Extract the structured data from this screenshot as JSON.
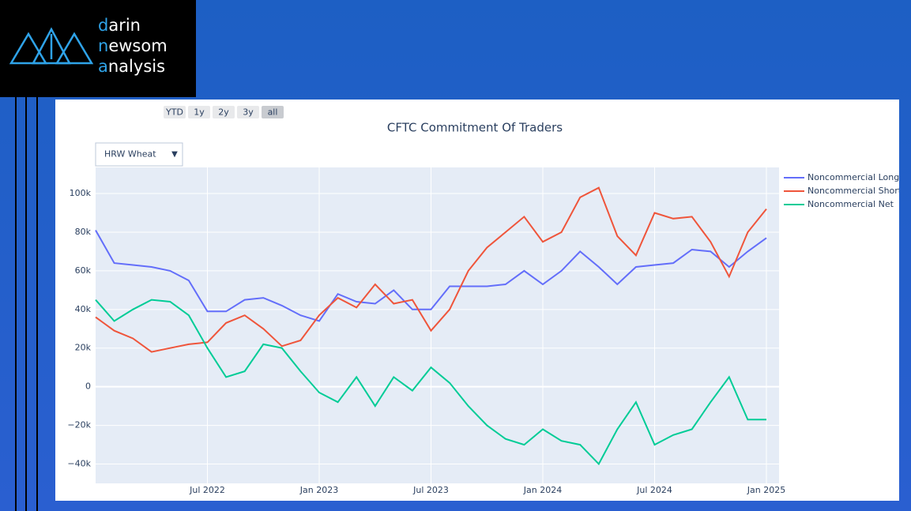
{
  "logo": {
    "lines": [
      "darin",
      "newsom",
      "analysis"
    ]
  },
  "range_buttons": [
    "YTD",
    "1y",
    "2y",
    "3y",
    "all"
  ],
  "dropdown": {
    "selected": "HRW Wheat"
  },
  "chart_data": {
    "type": "line",
    "title": "CFTC Commitment Of Traders",
    "x": [
      "2022-01",
      "2022-02",
      "2022-03",
      "2022-04",
      "2022-05",
      "2022-06",
      "2022-07",
      "2022-08",
      "2022-09",
      "2022-10",
      "2022-11",
      "2022-12",
      "2023-01",
      "2023-02",
      "2023-03",
      "2023-04",
      "2023-05",
      "2023-06",
      "2023-07",
      "2023-08",
      "2023-09",
      "2023-10",
      "2023-11",
      "2023-12",
      "2024-01",
      "2024-02",
      "2024-03",
      "2024-04",
      "2024-05",
      "2024-06",
      "2024-07",
      "2024-08",
      "2024-09",
      "2024-10",
      "2024-11",
      "2024-12",
      "2025-01"
    ],
    "series": [
      {
        "name": "Noncommercial Long",
        "color": "#636efa",
        "values": [
          81000,
          64000,
          63000,
          62000,
          60000,
          55000,
          39000,
          39000,
          45000,
          46000,
          42000,
          37000,
          34000,
          48000,
          44000,
          43000,
          50000,
          40000,
          40000,
          52000,
          52000,
          52000,
          53000,
          60000,
          53000,
          60000,
          70000,
          62000,
          53000,
          62000,
          63000,
          64000,
          71000,
          70000,
          62000,
          70000,
          77000
        ]
      },
      {
        "name": "Noncommercial Short",
        "color": "#ef553b",
        "values": [
          36000,
          29000,
          25000,
          18000,
          20000,
          22000,
          23000,
          33000,
          37000,
          30000,
          21000,
          24000,
          37000,
          46000,
          41000,
          53000,
          43000,
          45000,
          29000,
          40000,
          60000,
          72000,
          80000,
          88000,
          75000,
          80000,
          98000,
          103000,
          78000,
          68000,
          90000,
          87000,
          88000,
          75000,
          57000,
          80000,
          92000
        ]
      },
      {
        "name": "Noncommercial Net",
        "color": "#00cc96",
        "values": [
          45000,
          34000,
          40000,
          45000,
          44000,
          37000,
          20000,
          5000,
          8000,
          22000,
          20000,
          8000,
          -3000,
          -8000,
          5000,
          -10000,
          5000,
          -2000,
          10000,
          2000,
          -10000,
          -20000,
          -27000,
          -30000,
          -22000,
          -28000,
          -30000,
          -40000,
          -22000,
          -8000,
          -30000,
          -25000,
          -22000,
          -8000,
          5000,
          -17000,
          -17000
        ]
      }
    ],
    "xlim": [
      "2022-01",
      "2025-01"
    ],
    "xticks": [
      {
        "value": "2022-07",
        "label": "Jul 2022"
      },
      {
        "value": "2023-01",
        "label": "Jan 2023"
      },
      {
        "value": "2023-07",
        "label": "Jul 2023"
      },
      {
        "value": "2024-01",
        "label": "Jan 2024"
      },
      {
        "value": "2024-07",
        "label": "Jul 2024"
      },
      {
        "value": "2025-01",
        "label": "Jan 2025"
      }
    ],
    "ylim": [
      -50000,
      113500
    ],
    "yticks": [
      {
        "value": -40000,
        "label": "−40k"
      },
      {
        "value": -20000,
        "label": "−20k"
      },
      0,
      {
        "value": 20000,
        "label": "20k"
      },
      {
        "value": 40000,
        "label": "40k"
      },
      {
        "value": 60000,
        "label": "60k"
      },
      {
        "value": 80000,
        "label": "80k"
      },
      {
        "value": 100000,
        "label": "100k"
      }
    ],
    "grid": true,
    "legend": "right"
  }
}
